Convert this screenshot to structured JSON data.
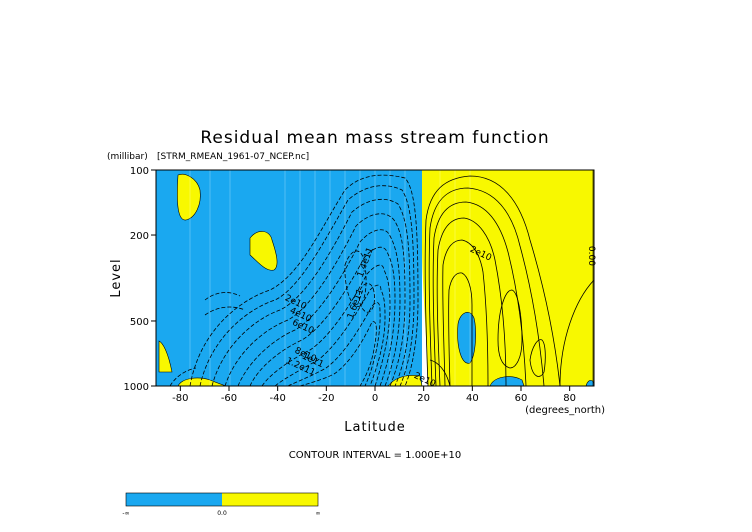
{
  "chart_data": {
    "type": "contour",
    "title": "Residual mean mass stream function",
    "subtitle": "[STRM_RMEAN_1961-07_NCEP.nc]",
    "xlabel": "Latitude",
    "xunits": "(degrees_north)",
    "ylabel": "Level",
    "yunits": "(millibar)",
    "xlim": [
      -90,
      90
    ],
    "ylim": [
      100,
      1000
    ],
    "y_scale": "log",
    "y_inverted": true,
    "x_ticks": [
      -80,
      -60,
      -40,
      -20,
      0,
      20,
      40,
      60,
      80
    ],
    "y_ticks": [
      100,
      200,
      500,
      1000
    ],
    "contour_interval_text": "CONTOUR INTERVAL = 1.000E+10",
    "contour_labels": [
      {
        "text": "2e10",
        "x": -33,
        "y": 420
      },
      {
        "text": "4e10",
        "x": -31,
        "y": 480
      },
      {
        "text": "6e10",
        "x": -30,
        "y": 545
      },
      {
        "text": "8e10",
        "x": -29,
        "y": 735
      },
      {
        "text": "1.2e11",
        "x": -31,
        "y": 835
      },
      {
        "text": "1e11",
        "x": -26,
        "y": 780
      },
      {
        "text": "1.4e11",
        "x": -3,
        "y": 270
      },
      {
        "text": "1.6e11",
        "x": -7,
        "y": 420
      },
      {
        "text": "2e10",
        "x": 43,
        "y": 250
      },
      {
        "text": "2e10",
        "x": 20,
        "y": 960
      },
      {
        "text": "0.00",
        "x": 88,
        "y": 250
      }
    ],
    "fill_regions": {
      "negative_color": "#1aa8f0",
      "positive_color": "#f8f800"
    },
    "colorbar": {
      "tick_labels": [
        "-∞",
        "0.0",
        "∞"
      ],
      "colors": [
        "#1aa8f0",
        "#f8f800"
      ]
    }
  }
}
